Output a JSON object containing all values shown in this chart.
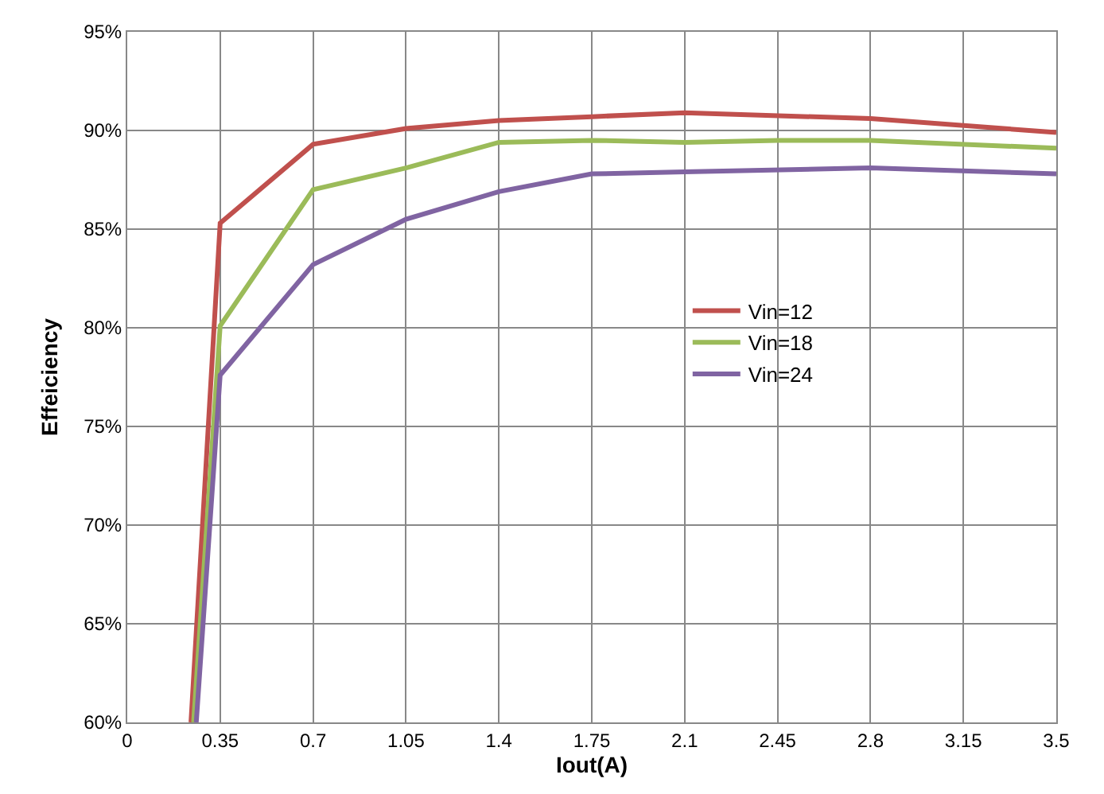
{
  "chart_data": {
    "type": "line",
    "xlabel": "Iout(A)",
    "ylabel": "Effeiciency",
    "xlim": [
      0,
      3.5
    ],
    "xticks": [
      0,
      0.35,
      0.7,
      1.05,
      1.4,
      1.75,
      2.1,
      2.45,
      2.8,
      3.15,
      3.5
    ],
    "ylim": [
      60,
      95
    ],
    "yticks": [
      {
        "value": 60,
        "label": "60%"
      },
      {
        "value": 65,
        "label": "65%"
      },
      {
        "value": 70,
        "label": "70%"
      },
      {
        "value": 75,
        "label": "75%"
      },
      {
        "value": 80,
        "label": "80%"
      },
      {
        "value": 85,
        "label": "85%"
      },
      {
        "value": 90,
        "label": "90%"
      },
      {
        "value": 95,
        "label": "95%"
      }
    ],
    "grid": true,
    "legend": "right",
    "marker": "none",
    "line_style": "solid",
    "series": [
      {
        "name": "Vin=12",
        "color": "#c0504d",
        "x": [
          0.24,
          0.35,
          0.7,
          1.05,
          1.4,
          1.75,
          2.1,
          2.8,
          3.5
        ],
        "values": [
          60,
          85.3,
          89.3,
          90.1,
          90.5,
          90.7,
          90.9,
          90.6,
          89.9
        ]
      },
      {
        "name": "Vin=18",
        "color": "#9bbb59",
        "x": [
          0.25,
          0.35,
          0.7,
          1.05,
          1.4,
          1.75,
          2.1,
          2.45,
          2.8,
          3.5
        ],
        "values": [
          60,
          80.1,
          87.0,
          88.1,
          89.4,
          89.5,
          89.4,
          89.5,
          89.5,
          89.1
        ]
      },
      {
        "name": "Vin=24",
        "color": "#8064a2",
        "x": [
          0.26,
          0.35,
          0.7,
          1.05,
          1.4,
          1.75,
          2.1,
          2.8,
          3.5
        ],
        "values": [
          60,
          77.6,
          83.2,
          85.5,
          86.9,
          87.8,
          87.9,
          88.1,
          87.8
        ]
      }
    ]
  }
}
